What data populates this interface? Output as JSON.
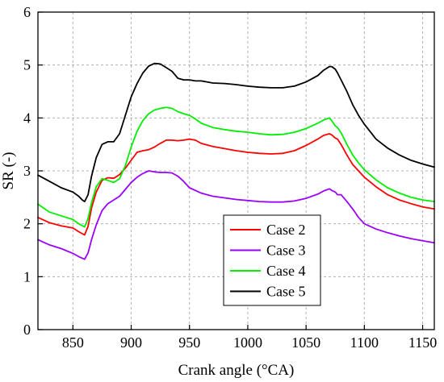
{
  "chart_data": {
    "type": "line",
    "title": "",
    "xlabel": "Crank angle (°CA)",
    "ylabel": "SR (-)",
    "xlim": [
      820,
      1160
    ],
    "ylim": [
      0,
      6
    ],
    "xticks": [
      850,
      900,
      950,
      1000,
      1050,
      1100,
      1150
    ],
    "yticks": [
      0,
      1,
      2,
      3,
      4,
      5,
      6
    ],
    "grid": true,
    "legend_position": "lower-center",
    "series": [
      {
        "name": "Case 2",
        "color": "#ff0000",
        "x": [
          820,
          830,
          840,
          850,
          855,
          860,
          863,
          866,
          870,
          875,
          880,
          885,
          890,
          895,
          900,
          905,
          910,
          915,
          920,
          925,
          930,
          935,
          940,
          945,
          950,
          955,
          960,
          970,
          980,
          990,
          1000,
          1010,
          1020,
          1030,
          1040,
          1050,
          1060,
          1065,
          1070,
          1072,
          1075,
          1077,
          1080,
          1085,
          1090,
          1095,
          1100,
          1110,
          1120,
          1130,
          1140,
          1150,
          1160
        ],
        "y": [
          2.12,
          2.02,
          1.96,
          1.92,
          1.85,
          1.79,
          1.95,
          2.3,
          2.6,
          2.82,
          2.87,
          2.86,
          2.93,
          3.05,
          3.2,
          3.35,
          3.38,
          3.4,
          3.45,
          3.52,
          3.58,
          3.58,
          3.57,
          3.58,
          3.6,
          3.58,
          3.52,
          3.46,
          3.42,
          3.38,
          3.35,
          3.33,
          3.32,
          3.33,
          3.38,
          3.48,
          3.6,
          3.67,
          3.7,
          3.68,
          3.62,
          3.6,
          3.5,
          3.3,
          3.12,
          3.0,
          2.88,
          2.7,
          2.55,
          2.45,
          2.38,
          2.32,
          2.28
        ]
      },
      {
        "name": "Case 3",
        "color": "#9b00ff",
        "x": [
          820,
          830,
          840,
          850,
          855,
          860,
          863,
          866,
          870,
          875,
          880,
          885,
          890,
          895,
          900,
          905,
          910,
          915,
          920,
          925,
          930,
          935,
          940,
          945,
          950,
          960,
          970,
          980,
          990,
          1000,
          1010,
          1020,
          1030,
          1040,
          1050,
          1060,
          1065,
          1070,
          1072,
          1075,
          1077,
          1080,
          1085,
          1090,
          1095,
          1100,
          1110,
          1120,
          1130,
          1140,
          1150,
          1160
        ],
        "y": [
          1.7,
          1.6,
          1.53,
          1.44,
          1.38,
          1.33,
          1.45,
          1.7,
          1.98,
          2.25,
          2.38,
          2.45,
          2.52,
          2.65,
          2.78,
          2.88,
          2.95,
          3.0,
          2.98,
          2.97,
          2.97,
          2.96,
          2.9,
          2.8,
          2.68,
          2.58,
          2.52,
          2.49,
          2.46,
          2.44,
          2.42,
          2.41,
          2.41,
          2.43,
          2.48,
          2.56,
          2.62,
          2.66,
          2.63,
          2.6,
          2.55,
          2.55,
          2.42,
          2.28,
          2.12,
          2.0,
          1.9,
          1.83,
          1.77,
          1.72,
          1.68,
          1.64
        ]
      },
      {
        "name": "Case 4",
        "color": "#00ee00",
        "x": [
          820,
          830,
          840,
          850,
          855,
          860,
          863,
          866,
          870,
          875,
          880,
          885,
          890,
          895,
          900,
          905,
          910,
          915,
          920,
          925,
          930,
          935,
          940,
          945,
          950,
          955,
          960,
          970,
          980,
          990,
          1000,
          1010,
          1020,
          1030,
          1040,
          1050,
          1060,
          1065,
          1070,
          1072,
          1075,
          1077,
          1080,
          1085,
          1090,
          1095,
          1100,
          1110,
          1120,
          1130,
          1140,
          1150,
          1160
        ],
        "y": [
          2.37,
          2.22,
          2.15,
          2.08,
          2.0,
          1.94,
          2.1,
          2.4,
          2.7,
          2.85,
          2.82,
          2.78,
          2.85,
          3.1,
          3.45,
          3.75,
          3.95,
          4.08,
          4.15,
          4.18,
          4.2,
          4.18,
          4.12,
          4.08,
          4.05,
          3.98,
          3.9,
          3.82,
          3.78,
          3.75,
          3.73,
          3.7,
          3.68,
          3.69,
          3.73,
          3.8,
          3.9,
          3.96,
          4.0,
          3.95,
          3.85,
          3.82,
          3.72,
          3.5,
          3.3,
          3.15,
          3.02,
          2.83,
          2.68,
          2.58,
          2.5,
          2.45,
          2.42
        ]
      },
      {
        "name": "Case 5",
        "color": "#000000",
        "x": [
          820,
          830,
          840,
          850,
          855,
          858,
          860,
          863,
          866,
          870,
          875,
          880,
          885,
          890,
          895,
          900,
          905,
          910,
          915,
          920,
          925,
          930,
          935,
          940,
          945,
          950,
          955,
          960,
          970,
          980,
          990,
          1000,
          1010,
          1020,
          1030,
          1040,
          1050,
          1060,
          1065,
          1070,
          1072,
          1075,
          1077,
          1080,
          1085,
          1090,
          1095,
          1100,
          1110,
          1120,
          1130,
          1140,
          1150,
          1160
        ],
        "y": [
          2.92,
          2.8,
          2.68,
          2.6,
          2.52,
          2.45,
          2.42,
          2.55,
          2.9,
          3.25,
          3.5,
          3.55,
          3.55,
          3.7,
          4.05,
          4.4,
          4.65,
          4.85,
          4.98,
          5.03,
          5.02,
          4.95,
          4.88,
          4.75,
          4.72,
          4.72,
          4.7,
          4.7,
          4.66,
          4.65,
          4.63,
          4.6,
          4.58,
          4.57,
          4.57,
          4.6,
          4.68,
          4.8,
          4.9,
          4.97,
          4.97,
          4.92,
          4.85,
          4.72,
          4.5,
          4.25,
          4.05,
          3.88,
          3.6,
          3.43,
          3.3,
          3.2,
          3.13,
          3.07
        ]
      }
    ]
  }
}
